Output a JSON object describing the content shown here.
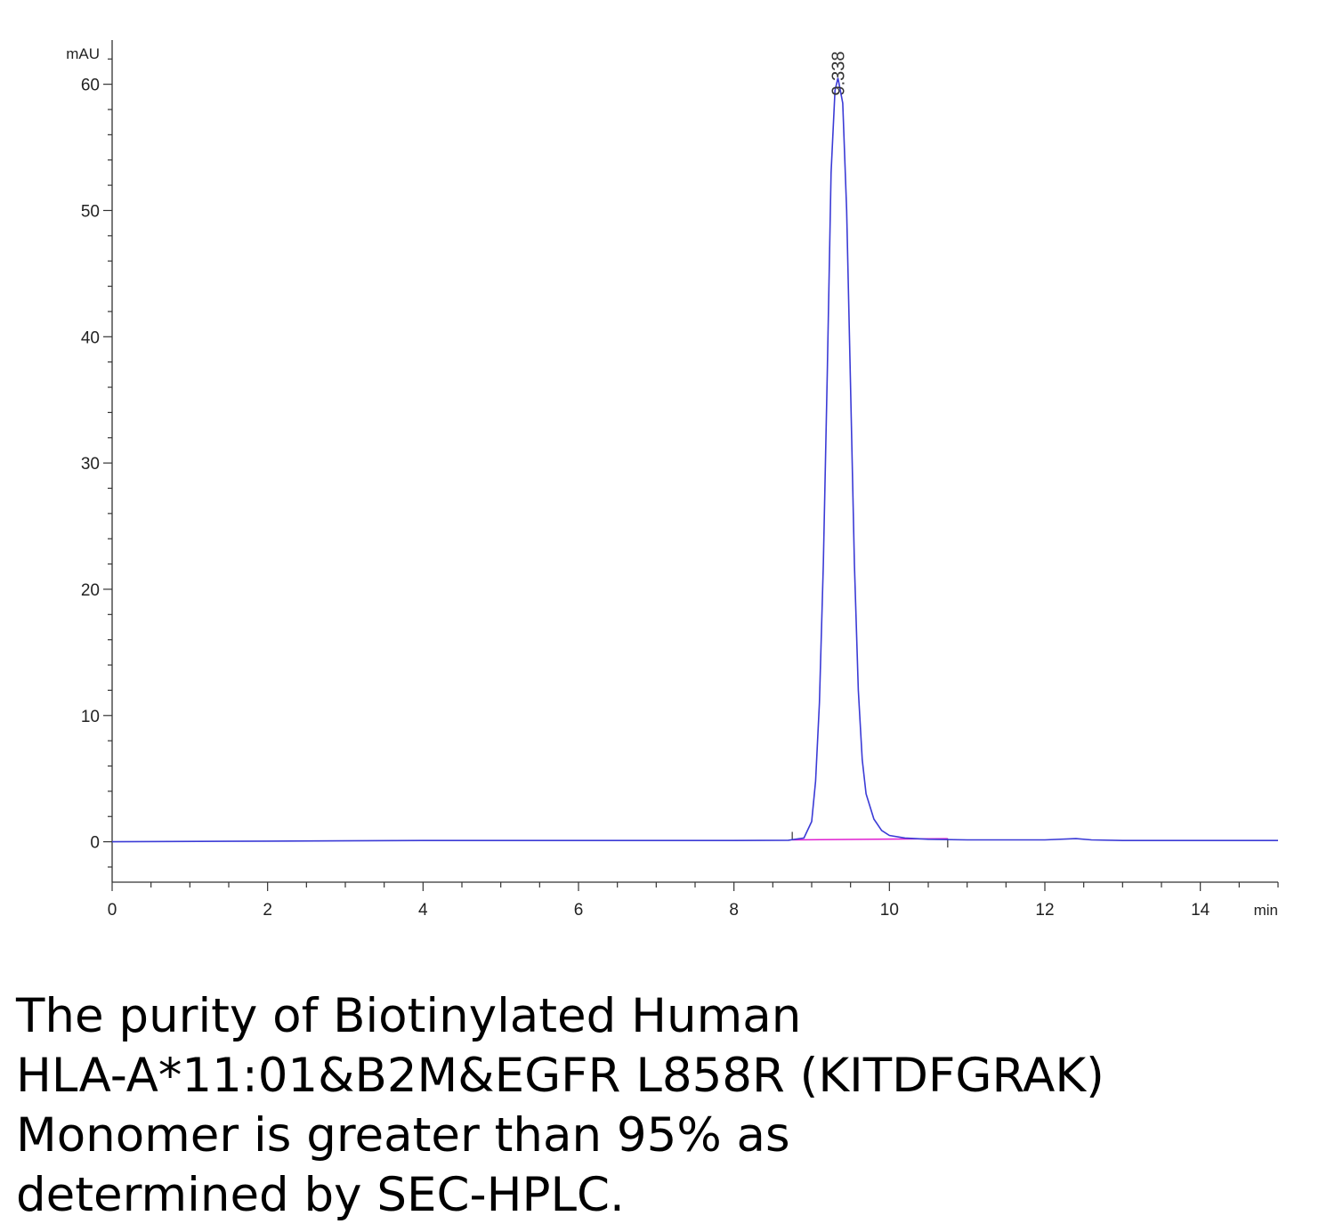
{
  "chart_data": {
    "type": "line",
    "title": "",
    "xlabel": "",
    "ylabel": "",
    "x_unit": "min",
    "y_unit": "mAU",
    "xlim": [
      0,
      15
    ],
    "ylim": [
      -3.2,
      63.5
    ],
    "x_ticks": [
      0,
      2,
      4,
      6,
      8,
      10,
      12,
      14
    ],
    "y_ticks": [
      0,
      10,
      20,
      30,
      40,
      50,
      60
    ],
    "grid": false,
    "peak": {
      "retention_time": 9.338,
      "label": "9.338",
      "height": 60.5
    },
    "series": [
      {
        "color": "#3b3bd6",
        "points": [
          [
            0,
            0
          ],
          [
            2,
            0.05
          ],
          [
            4,
            0.1
          ],
          [
            6,
            0.1
          ],
          [
            8,
            0.1
          ],
          [
            8.7,
            0.12
          ],
          [
            8.9,
            0.3
          ],
          [
            9.0,
            1.6
          ],
          [
            9.05,
            4.8
          ],
          [
            9.1,
            11
          ],
          [
            9.15,
            22
          ],
          [
            9.2,
            37
          ],
          [
            9.25,
            53
          ],
          [
            9.3,
            59.5
          ],
          [
            9.338,
            60.5
          ],
          [
            9.4,
            58.5
          ],
          [
            9.45,
            50
          ],
          [
            9.5,
            36
          ],
          [
            9.55,
            22
          ],
          [
            9.6,
            12
          ],
          [
            9.65,
            6.5
          ],
          [
            9.7,
            3.8
          ],
          [
            9.8,
            1.8
          ],
          [
            9.9,
            0.9
          ],
          [
            10.0,
            0.5
          ],
          [
            10.2,
            0.3
          ],
          [
            10.5,
            0.2
          ],
          [
            11,
            0.15
          ],
          [
            12,
            0.15
          ],
          [
            12.4,
            0.25
          ],
          [
            12.6,
            0.15
          ],
          [
            13,
            0.1
          ],
          [
            14,
            0.1
          ],
          [
            15,
            0.1
          ]
        ]
      }
    ],
    "baseline": {
      "color": "#e020d0",
      "start": [
        8.75,
        0.15
      ],
      "end": [
        10.75,
        0.25
      ]
    }
  },
  "caption_lines": [
    "The purity of Biotinylated Human",
    "HLA-A*11:01&B2M&EGFR L858R (KITDFGRAK)",
    "Monomer is greater than 95% as",
    "determined by SEC-HPLC."
  ]
}
